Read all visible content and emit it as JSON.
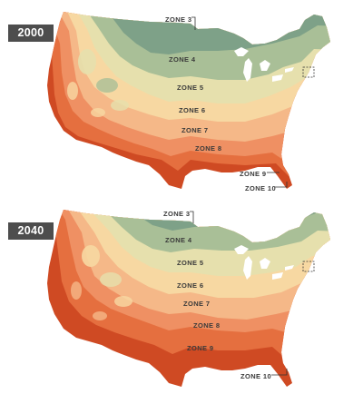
{
  "maps": [
    {
      "year": "2000",
      "zone_labels": {
        "zone3": "ZONE 3",
        "zone4": "ZONE 4",
        "zone5": "ZONE 5",
        "zone6": "ZONE 6",
        "zone7": "ZONE 7",
        "zone8": "ZONE 8",
        "zone9": "ZONE 9",
        "zone10": "ZONE 10"
      }
    },
    {
      "year": "2040",
      "zone_labels": {
        "zone3": "ZONE 3",
        "zone4": "ZONE 4",
        "zone5": "ZONE 5",
        "zone6": "ZONE 6",
        "zone7": "ZONE 7",
        "zone8": "ZONE 8",
        "zone9": "ZONE 9",
        "zone10": "ZONE 10"
      }
    }
  ],
  "zone_colors": {
    "zone3": "#7ea188",
    "zone4": "#a9bf97",
    "zone5": "#e6e0ad",
    "zone6": "#f7d8a2",
    "zone7": "#f5b888",
    "zone8": "#ef9063",
    "zone9": "#e56f3f",
    "zone10": "#cf4a23",
    "land_outline": "#ffffff",
    "lakes": "#ffffff"
  }
}
